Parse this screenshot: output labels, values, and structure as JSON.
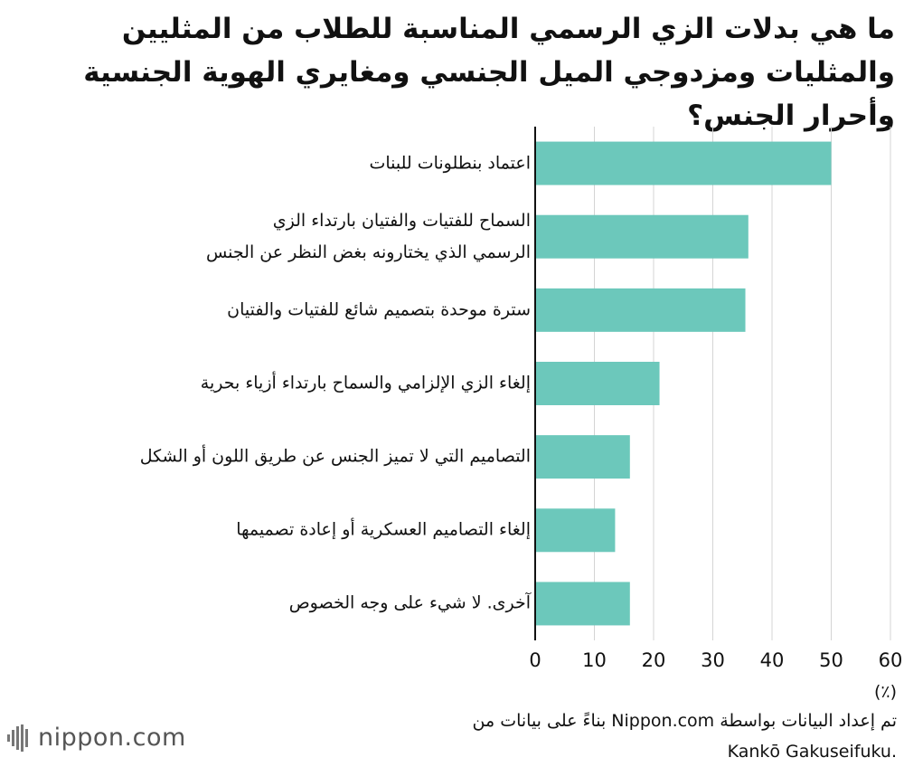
{
  "chart_data": {
    "type": "bar",
    "orientation": "horizontal",
    "title": "ما هي بدلات الزي الرسمي المناسبة للطلاب من المثليين والمثليات ومزدوجي الميل الجنسي ومغايري الهوية الجنسية وأحرار الجنس؟",
    "categories": [
      [
        "اعتماد بنطلونات للبنات"
      ],
      [
        "السماح للفتيات والفتيان بارتداء الزي",
        "الرسمي الذي يختارونه بغض النظر عن الجنس"
      ],
      [
        "سترة موحدة بتصميم شائع للفتيات والفتيان"
      ],
      [
        "إلغاء الزي الإلزامي والسماح بارتداء أزياء بحرية"
      ],
      [
        "التصاميم التي لا تميز الجنس عن طريق اللون أو الشكل"
      ],
      [
        "إلغاء التصاميم العسكرية أو إعادة تصميمها"
      ],
      [
        "آخرى. لا شيء على وجه الخصوص"
      ]
    ],
    "values": [
      50,
      36,
      35.5,
      21,
      16,
      13.5,
      16
    ],
    "xlim": [
      0,
      60
    ],
    "xticks": [
      "0",
      "10",
      "20",
      "30",
      "40",
      "50",
      "60"
    ],
    "unit": "(٪)",
    "bar_color": "#6cc8bb",
    "grid": true
  },
  "source_lines": [
    "تم إعداد البيانات بواسطة Nippon.com بناءً على بيانات من",
    ".Kankō Gakuseifuku"
  ],
  "logo": {
    "text": "nippon.com",
    "icon": "nippon-bars-icon"
  }
}
